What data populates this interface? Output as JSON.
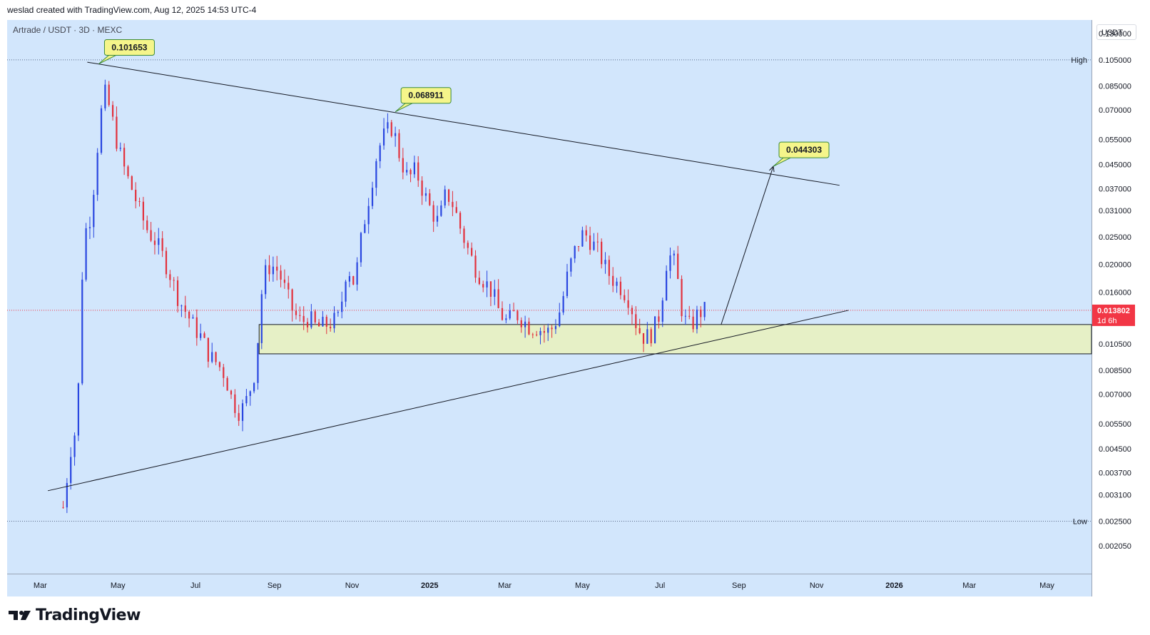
{
  "header": {
    "caption": "weslad created with TradingView.com, Aug 12, 2025 14:53 UTC-4"
  },
  "symbol_line": "Artrade / USDT · 3D · MEXC",
  "currency_button": "USDT",
  "brand": {
    "name": "TradingView"
  },
  "colors": {
    "background": "#d2e6fc",
    "up": "#2946e0",
    "down": "#e2303c",
    "callout": "#f5f58a",
    "zone": "#e6f0c6",
    "price_tag": "#f23645"
  },
  "chart_data": {
    "type": "candlestick",
    "scale": "log",
    "ylim": [
      0.0019,
      0.145
    ],
    "y_ticks": [
      "0.130000",
      "0.105000",
      "0.085000",
      "0.070000",
      "0.055000",
      "0.045000",
      "0.037000",
      "0.031000",
      "0.025000",
      "0.020000",
      "0.016000",
      "0.013802",
      "0.010500",
      "0.008500",
      "0.007000",
      "0.005500",
      "0.004500",
      "0.003700",
      "0.003100",
      "0.002500",
      "0.002050"
    ],
    "x_ticks": [
      "Mar",
      "May",
      "Jul",
      "Sep",
      "Nov",
      "2025",
      "Mar",
      "May",
      "Jul",
      "Sep",
      "Nov",
      "2026",
      "Mar",
      "May"
    ],
    "x_range": [
      "2024-02-04",
      "2026-06-05"
    ],
    "session_high": {
      "label": "High",
      "value": "0.105000"
    },
    "session_low": {
      "label": "Low",
      "value": "0.002500"
    },
    "last_price": {
      "value": "0.013802",
      "countdown": "1d 6h"
    },
    "callouts": [
      "0.101653",
      "0.068911",
      "0.044303"
    ],
    "close_path": [
      [
        "2024-03-19",
        0.0028
      ],
      [
        "2024-03-25",
        0.0045
      ],
      [
        "2024-03-30",
        0.0055
      ],
      [
        "2024-04-04",
        0.025
      ],
      [
        "2024-04-10",
        0.03
      ],
      [
        "2024-04-16",
        0.058
      ],
      [
        "2024-04-20",
        0.082
      ],
      [
        "2024-04-25",
        0.07
      ],
      [
        "2024-05-01",
        0.052
      ],
      [
        "2024-05-07",
        0.042
      ],
      [
        "2024-05-13",
        0.036
      ],
      [
        "2024-05-19",
        0.03
      ],
      [
        "2024-05-25",
        0.026
      ],
      [
        "2024-05-31",
        0.024
      ],
      [
        "2024-06-06",
        0.021
      ],
      [
        "2024-06-12",
        0.018
      ],
      [
        "2024-06-18",
        0.015
      ],
      [
        "2024-06-24",
        0.0135
      ],
      [
        "2024-06-30",
        0.012
      ],
      [
        "2024-07-06",
        0.011
      ],
      [
        "2024-07-12",
        0.0095
      ],
      [
        "2024-07-18",
        0.009
      ],
      [
        "2024-07-24",
        0.0082
      ],
      [
        "2024-07-30",
        0.0066
      ],
      [
        "2024-08-05",
        0.006
      ],
      [
        "2024-08-11",
        0.0068
      ],
      [
        "2024-08-17",
        0.0085
      ],
      [
        "2024-08-23",
        0.018
      ],
      [
        "2024-08-29",
        0.02
      ],
      [
        "2024-09-04",
        0.019
      ],
      [
        "2024-09-10",
        0.016
      ],
      [
        "2024-09-16",
        0.0135
      ],
      [
        "2024-09-22",
        0.0125
      ],
      [
        "2024-09-28",
        0.013
      ],
      [
        "2024-10-04",
        0.012
      ],
      [
        "2024-10-10",
        0.0122
      ],
      [
        "2024-10-16",
        0.0125
      ],
      [
        "2024-10-22",
        0.013
      ],
      [
        "2024-10-28",
        0.02
      ],
      [
        "2024-11-03",
        0.017
      ],
      [
        "2024-11-09",
        0.026
      ],
      [
        "2024-11-15",
        0.036
      ],
      [
        "2024-11-21",
        0.05
      ],
      [
        "2024-11-27",
        0.058
      ],
      [
        "2024-12-03",
        0.061
      ],
      [
        "2024-12-09",
        0.047
      ],
      [
        "2024-12-15",
        0.04
      ],
      [
        "2024-12-21",
        0.043
      ],
      [
        "2024-12-27",
        0.036
      ],
      [
        "2025-01-02",
        0.031
      ],
      [
        "2025-01-08",
        0.028
      ],
      [
        "2025-01-14",
        0.036
      ],
      [
        "2025-01-20",
        0.032
      ],
      [
        "2025-01-26",
        0.026
      ],
      [
        "2025-02-01",
        0.022
      ],
      [
        "2025-02-07",
        0.019
      ],
      [
        "2025-02-13",
        0.0175
      ],
      [
        "2025-02-19",
        0.016
      ],
      [
        "2025-02-25",
        0.0135
      ],
      [
        "2025-03-03",
        0.0125
      ],
      [
        "2025-03-09",
        0.0135
      ],
      [
        "2025-03-15",
        0.0128
      ],
      [
        "2025-03-21",
        0.012
      ],
      [
        "2025-03-27",
        0.012
      ],
      [
        "2025-04-02",
        0.0115
      ],
      [
        "2025-04-08",
        0.012
      ],
      [
        "2025-04-14",
        0.014
      ],
      [
        "2025-04-20",
        0.019
      ],
      [
        "2025-04-26",
        0.023
      ],
      [
        "2025-05-02",
        0.026
      ],
      [
        "2025-05-08",
        0.024
      ],
      [
        "2025-05-14",
        0.022
      ],
      [
        "2025-05-20",
        0.019
      ],
      [
        "2025-05-26",
        0.0175
      ],
      [
        "2025-06-01",
        0.0165
      ],
      [
        "2025-06-07",
        0.015
      ],
      [
        "2025-06-13",
        0.012
      ],
      [
        "2025-06-19",
        0.011
      ],
      [
        "2025-06-25",
        0.0115
      ],
      [
        "2025-07-01",
        0.0135
      ],
      [
        "2025-07-07",
        0.022
      ],
      [
        "2025-07-13",
        0.02
      ],
      [
        "2025-07-19",
        0.013
      ],
      [
        "2025-07-25",
        0.012
      ],
      [
        "2025-07-31",
        0.0135
      ],
      [
        "2025-08-06",
        0.0138
      ]
    ],
    "annotations": {
      "upper_trendline": {
        "start": [
          "2024-04-07",
          0.103
        ],
        "end": [
          "2025-11-19",
          0.038
        ]
      },
      "lower_trendline": {
        "start": [
          "2024-03-07",
          0.0032
        ],
        "end": [
          "2025-11-26",
          0.0138
        ]
      },
      "support_zone": {
        "x_start": "2024-08-20",
        "y_range": [
          0.0097,
          0.0123
        ]
      },
      "projection_arrow": {
        "start": [
          "2025-08-18",
          0.0123
        ],
        "end": [
          "2025-09-28",
          0.0443
        ]
      },
      "high_line": 0.105,
      "low_line": 0.0025,
      "current_price_line": 0.013802
    }
  }
}
